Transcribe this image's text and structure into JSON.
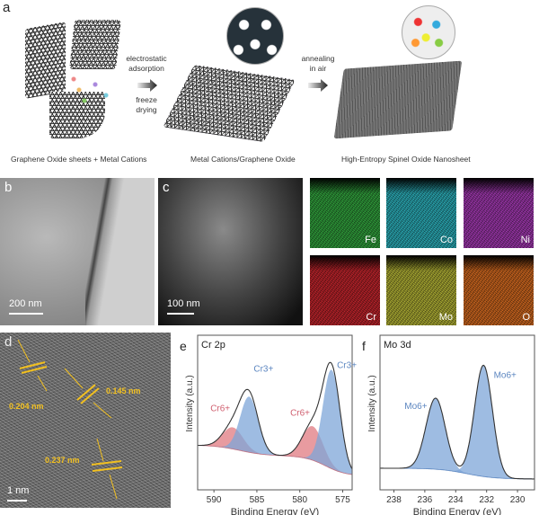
{
  "panel_a": {
    "label": "a",
    "captions": [
      "Graphene Oxide sheets + Metal Cations",
      "Metal Cations/Graphene Oxide",
      "High-Entropy Spinel Oxide Nanosheet"
    ],
    "step1_top": [
      "electrostatic",
      "adsorption"
    ],
    "step1_bottom": [
      "freeze",
      "drying"
    ],
    "step2_top": [
      "annealing",
      "in air"
    ]
  },
  "panel_b": {
    "label": "b",
    "scale": "200 nm"
  },
  "panel_c": {
    "label": "c",
    "scale": "100 nm",
    "maps": [
      {
        "element": "Fe",
        "color": "#2f9a3a"
      },
      {
        "element": "Co",
        "color": "#2aa6b0"
      },
      {
        "element": "Ni",
        "color": "#9a36a8"
      },
      {
        "element": "Cr",
        "color": "#b8232a"
      },
      {
        "element": "Mo",
        "color": "#a8a832"
      },
      {
        "element": "O",
        "color": "#c8641e"
      }
    ]
  },
  "panel_d": {
    "label": "d",
    "scale": "1 nm",
    "spacings": [
      "0.204 nm",
      "0.145 nm",
      "0.237 nm"
    ]
  },
  "chart_data": [
    {
      "panel": "e",
      "type": "line",
      "title": "Cr 2p",
      "xlabel": "Binding Energy (eV)",
      "ylabel": "Intensity (a.u.)",
      "xlim": [
        591.9,
        573.9
      ],
      "ylim": [
        0,
        1
      ],
      "xticks": [
        "590",
        "585",
        "580",
        "575"
      ],
      "xtick_values": [
        590,
        585,
        580,
        575
      ],
      "background": {
        "right": 0.09,
        "middle": 0.22,
        "left": 0.29
      },
      "components": [
        {
          "label": "Cr6+",
          "center": 587.8,
          "height": 0.14,
          "sigma": 1.2,
          "color": "#e07a80"
        },
        {
          "label": "Cr3+",
          "center": 585.9,
          "height": 0.36,
          "sigma": 1.05,
          "color": "#7ea6d8"
        },
        {
          "label": "Cr6+",
          "center": 578.5,
          "height": 0.22,
          "sigma": 1.2,
          "color": "#e07a80"
        },
        {
          "label": "Cr3+",
          "center": 576.3,
          "height": 0.64,
          "sigma": 1.0,
          "color": "#7ea6d8"
        }
      ]
    },
    {
      "panel": "f",
      "type": "line",
      "title": "Mo 3d",
      "xlabel": "Binding Energy (eV)",
      "ylabel": "Intensity (a.u.)",
      "xlim": [
        238.9,
        228.9
      ],
      "ylim": [
        0,
        1
      ],
      "xticks": [
        "238",
        "236",
        "234",
        "232",
        "230"
      ],
      "xtick_values": [
        238,
        236,
        234,
        232,
        230
      ],
      "background": {
        "right": 0.07,
        "left": 0.14
      },
      "components": [
        {
          "label": "Mo6+",
          "center": 235.3,
          "height": 0.46,
          "sigma": 0.62,
          "color": "#7ea6d8"
        },
        {
          "label": "Mo6+",
          "center": 232.2,
          "height": 0.72,
          "sigma": 0.58,
          "color": "#7ea6d8"
        }
      ]
    }
  ]
}
